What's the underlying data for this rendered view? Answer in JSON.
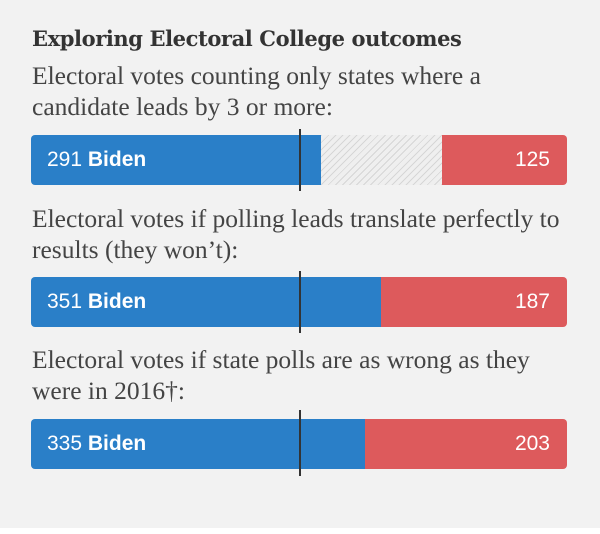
{
  "title": "Exploring Electoral College outcomes",
  "colors": {
    "biden": "#2a7fc8",
    "trump": "#dd5a5c",
    "tossup_hatch": "#d6d6d6",
    "background": "#f2f2f2"
  },
  "chart_data": {
    "type": "bar",
    "orientation": "horizontal",
    "stacked": true,
    "total_electoral_votes": 538,
    "threshold_to_win": 270,
    "xlim": [
      0,
      538
    ],
    "series": [
      {
        "name": "Biden",
        "values": [
          291,
          351,
          335
        ]
      },
      {
        "name": "Toss-up",
        "values": [
          122,
          0,
          0
        ]
      },
      {
        "name": "",
        "values": [
          125,
          187,
          203
        ]
      }
    ],
    "scenarios": [
      {
        "label": "Electoral votes counting only states where a candidate leads by 3 or more:",
        "biden": 291,
        "tossup": 122,
        "trump": 125,
        "biden_value_text": "291",
        "biden_name_text": "Biden",
        "trump_value_text": "125"
      },
      {
        "label": "Electoral votes if polling leads translate perfectly to results (they won’t):",
        "biden": 351,
        "tossup": 0,
        "trump": 187,
        "biden_value_text": "351",
        "biden_name_text": "Biden",
        "trump_value_text": "187"
      },
      {
        "label": "Electoral votes if state polls are as wrong as they were in 2016†:",
        "biden": 335,
        "tossup": 0,
        "trump": 203,
        "biden_value_text": "335",
        "biden_name_text": "Biden",
        "trump_value_text": "203"
      }
    ]
  }
}
